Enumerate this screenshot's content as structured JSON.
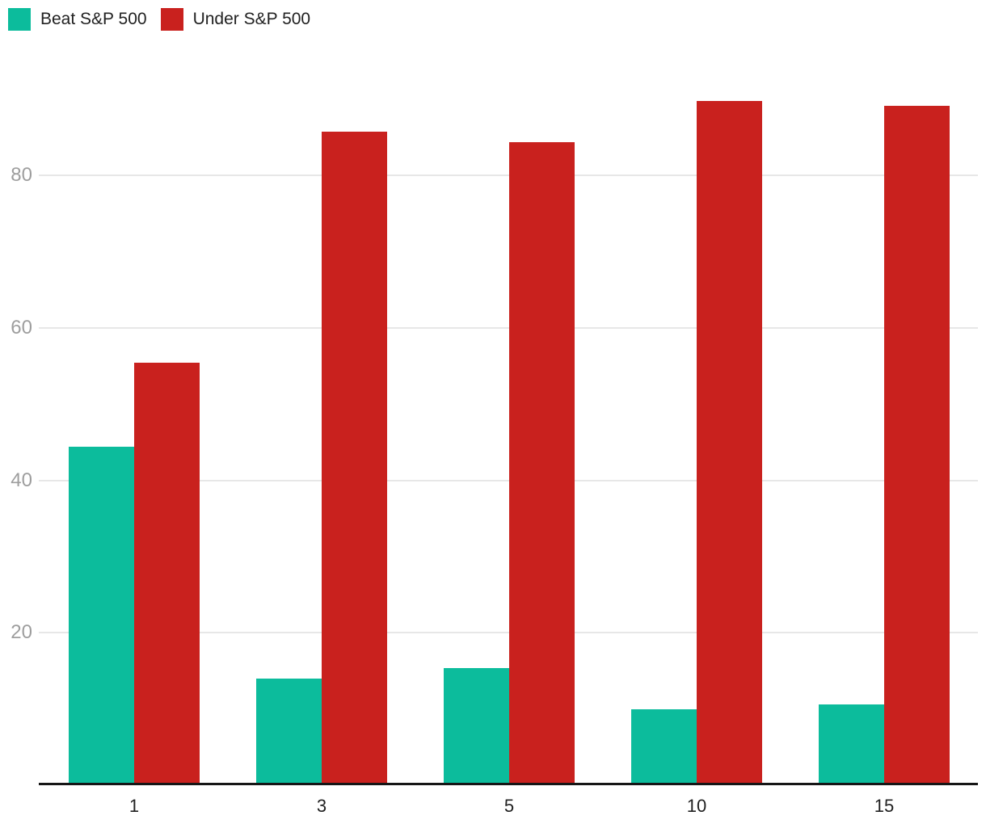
{
  "legend": {
    "items": [
      {
        "label": "Beat S&P 500",
        "color": "#0cbc9c"
      },
      {
        "label": "Under S&P 500",
        "color": "#c9211e"
      }
    ]
  },
  "chart_data": {
    "type": "bar",
    "title": "",
    "xlabel": "",
    "ylabel": "",
    "categories": [
      "1",
      "3",
      "5",
      "10",
      "15"
    ],
    "series": [
      {
        "name": "Beat S&P 500",
        "color": "#0cbc9c",
        "values": [
          44.4,
          14.0,
          15.4,
          10.0,
          10.6
        ]
      },
      {
        "name": "Under S&P 500",
        "color": "#c9211e",
        "values": [
          55.4,
          85.8,
          84.4,
          89.8,
          89.2
        ]
      }
    ],
    "ylim": [
      0,
      95
    ],
    "yticks": [
      20,
      40,
      60,
      80
    ],
    "grid": true,
    "legend_position": "top-left",
    "colors": {
      "y_tick_label": "#9e9e9e",
      "x_tick_label": "#212121",
      "gridline": "#e7e7e7",
      "axis_line": "#161616",
      "background": "#ffffff"
    }
  }
}
